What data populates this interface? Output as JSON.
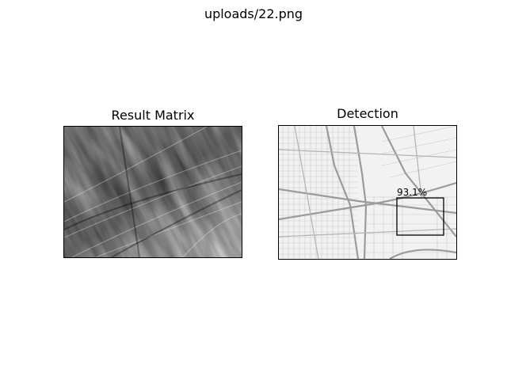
{
  "figure": {
    "title": "uploads/22.png"
  },
  "left_panel": {
    "title": "Result Matrix"
  },
  "right_panel": {
    "title": "Detection",
    "detection": {
      "confidence_label": "93.1%"
    }
  }
}
